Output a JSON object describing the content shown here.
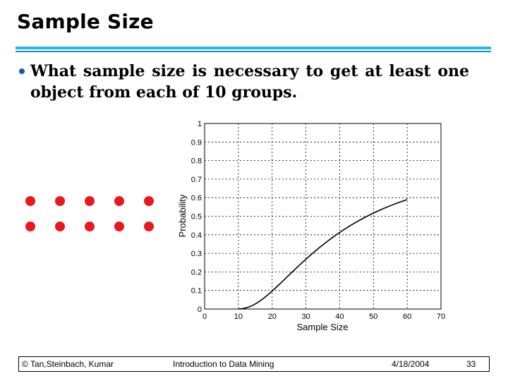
{
  "slide": {
    "title": "Sample Size",
    "bullet": "What sample size is necessary to get at least one object from each of 10 groups.",
    "accent_color": "#29b6e3",
    "dot_color": "#e8191e"
  },
  "dots": {
    "rows": 2,
    "cols": 5,
    "color": "#e8191e"
  },
  "chart_data": {
    "type": "line",
    "title": "",
    "xlabel": "Sample Size",
    "ylabel": "Probability",
    "xlim": [
      0,
      70
    ],
    "ylim": [
      0,
      1
    ],
    "xticks": [
      "0",
      "10",
      "20",
      "30",
      "40",
      "50",
      "60",
      "70"
    ],
    "yticks": [
      "0",
      "0.1",
      "0.2",
      "0.3",
      "0.4",
      "0.5",
      "0.6",
      "0.7",
      "0.8",
      "0.9",
      "1"
    ],
    "grid": true,
    "series": [
      {
        "x": [
          10,
          11,
          12,
          13,
          14,
          15,
          16,
          17,
          18,
          19,
          20,
          21,
          22,
          23,
          24,
          25,
          26,
          27,
          28,
          29,
          30,
          31,
          32,
          33,
          34,
          35,
          36,
          37,
          38,
          39,
          40,
          41,
          42,
          43,
          44,
          45,
          46,
          47,
          48,
          49,
          50,
          51,
          52,
          53,
          54,
          55,
          56,
          57,
          58,
          59,
          60
        ],
        "y": [
          0.0004,
          0.0019,
          0.0051,
          0.0104,
          0.0178,
          0.0272,
          0.0384,
          0.0513,
          0.0655,
          0.0808,
          0.0969,
          0.1136,
          0.1307,
          0.1481,
          0.1656,
          0.1831,
          0.2006,
          0.2179,
          0.2351,
          0.252,
          0.2685,
          0.2847,
          0.3006,
          0.3161,
          0.3311,
          0.3457,
          0.3599,
          0.3737,
          0.3871,
          0.4001,
          0.4126,
          0.4248,
          0.4365,
          0.4478,
          0.4588,
          0.4694,
          0.4796,
          0.4895,
          0.499,
          0.5082,
          0.517,
          0.5256,
          0.5338,
          0.5418,
          0.5494,
          0.5568,
          0.5639,
          0.5707,
          0.5773,
          0.5837,
          0.5898
        ]
      }
    ]
  },
  "footer": {
    "authors": "© Tan,Steinbach, Kumar",
    "course": "Introduction to Data Mining",
    "date": "4/18/2004",
    "page": "33"
  }
}
